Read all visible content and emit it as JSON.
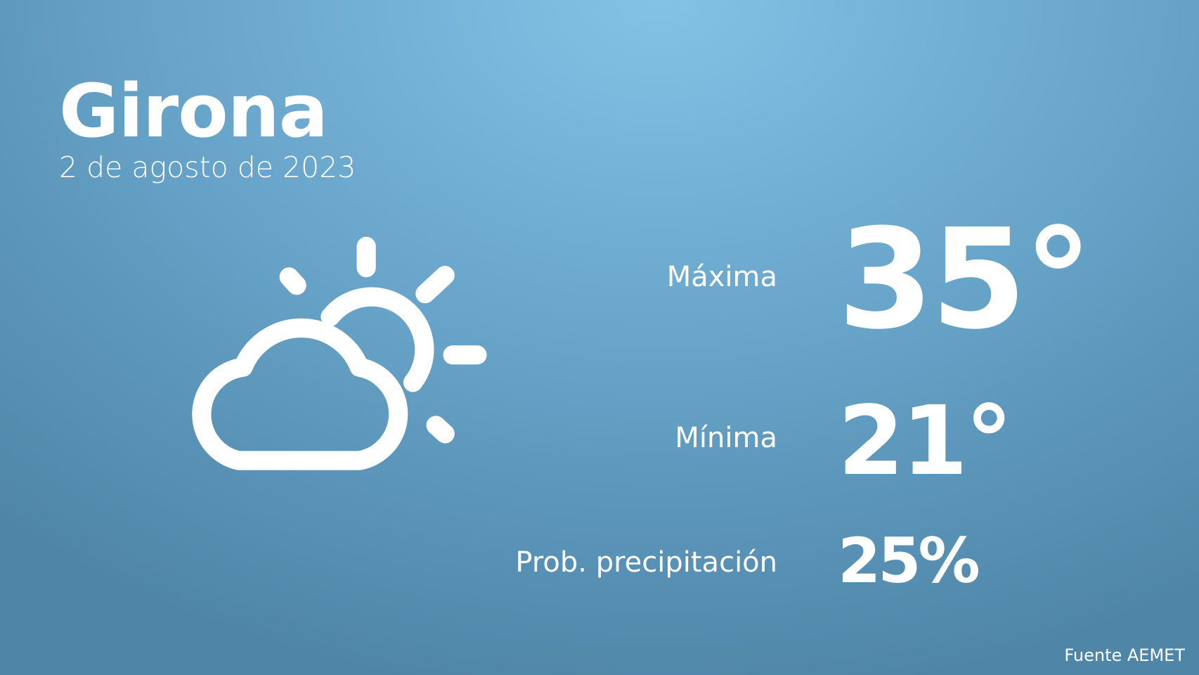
{
  "location": {
    "city": "Girona",
    "date": "2 de agosto de 2023"
  },
  "forecast": {
    "icon": "partly-cloudy-icon",
    "max_label": "Máxima",
    "max_value": "35°",
    "min_label": "Mínima",
    "min_value": "21°",
    "precip_label": "Prob. precipitación",
    "precip_value": "25%"
  },
  "footer": {
    "source": "Fuente AEMET"
  },
  "colors": {
    "background_top": "#83c2e5",
    "background_bottom": "#4f86a8",
    "text": "#ffffff"
  }
}
